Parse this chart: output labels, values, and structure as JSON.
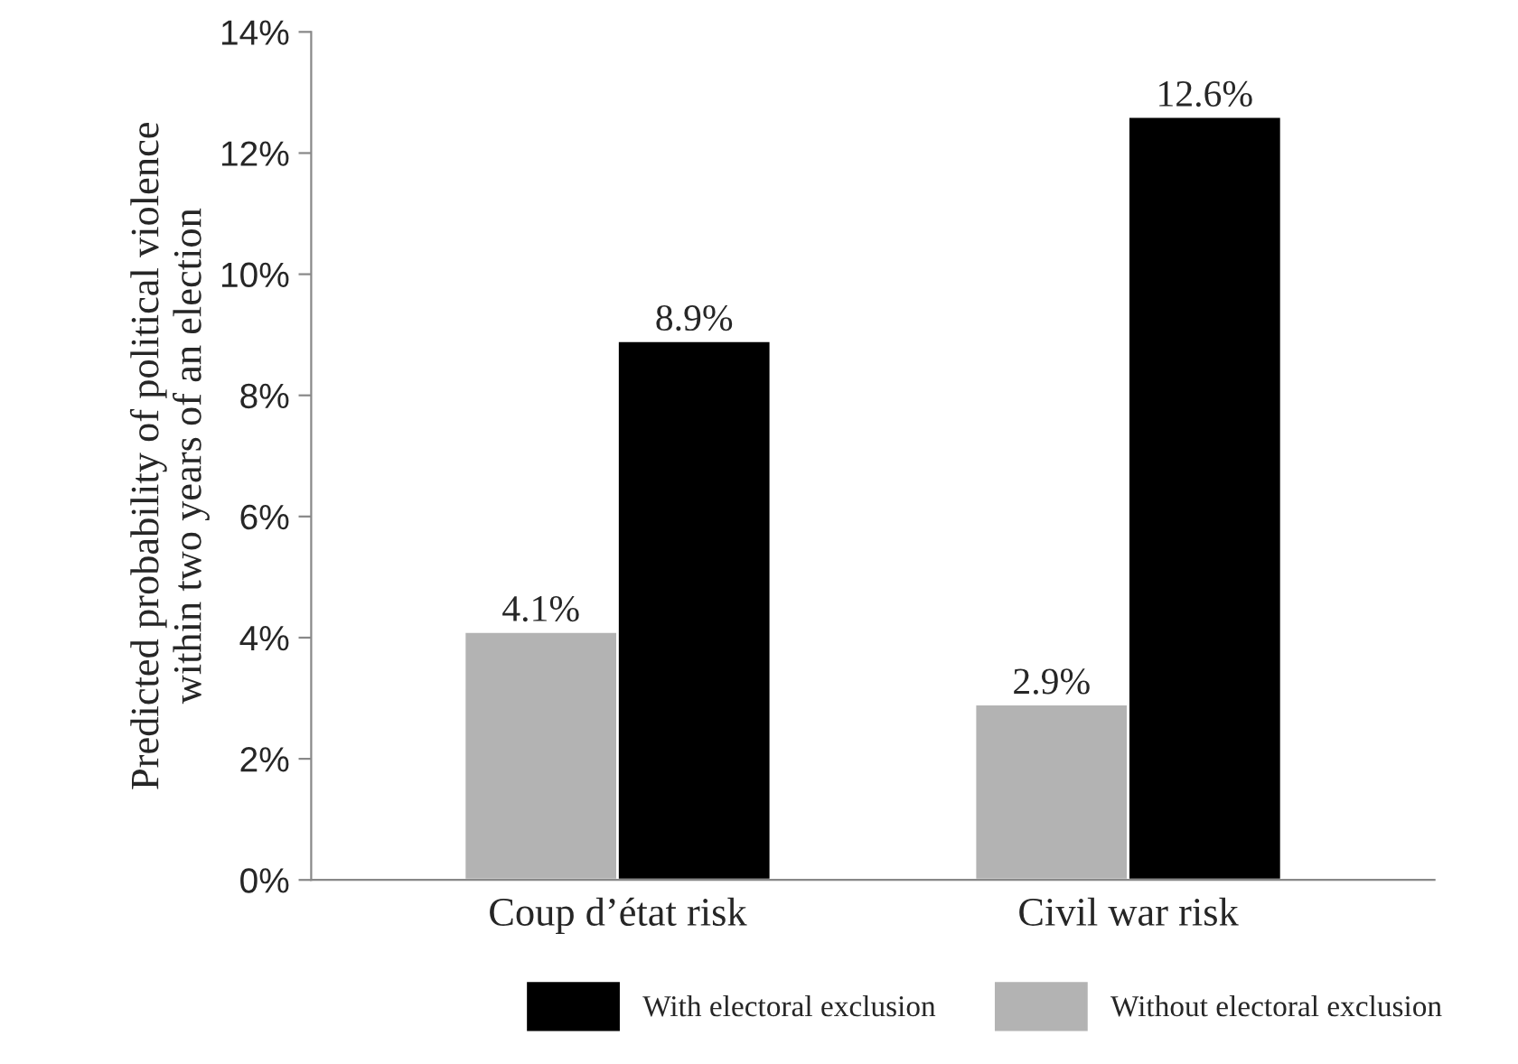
{
  "chart_data": {
    "type": "bar",
    "ylabel": "Predicted probability of political violence\nwithin two years of an election",
    "categories": [
      "Coup d’état risk",
      "Civil war risk"
    ],
    "series": [
      {
        "name": "Without electoral exclusion",
        "color": "#b3b3b3",
        "values": [
          4.1,
          2.9
        ]
      },
      {
        "name": "With electoral exclusion",
        "color": "#000000",
        "values": [
          8.9,
          12.6
        ]
      }
    ],
    "value_labels": [
      [
        "4.1%",
        "2.9%"
      ],
      [
        "8.9%",
        "12.6%"
      ]
    ],
    "ylim": [
      0,
      14
    ],
    "yticks": [
      {
        "value": 0,
        "label": "0%"
      },
      {
        "value": 2,
        "label": "2%"
      },
      {
        "value": 4,
        "label": "4%"
      },
      {
        "value": 6,
        "label": "6%"
      },
      {
        "value": 8,
        "label": "8%"
      },
      {
        "value": 10,
        "label": "10%"
      },
      {
        "value": 12,
        "label": "12%"
      },
      {
        "value": 14,
        "label": "14%"
      }
    ],
    "grid": false,
    "legend": "bottom"
  }
}
